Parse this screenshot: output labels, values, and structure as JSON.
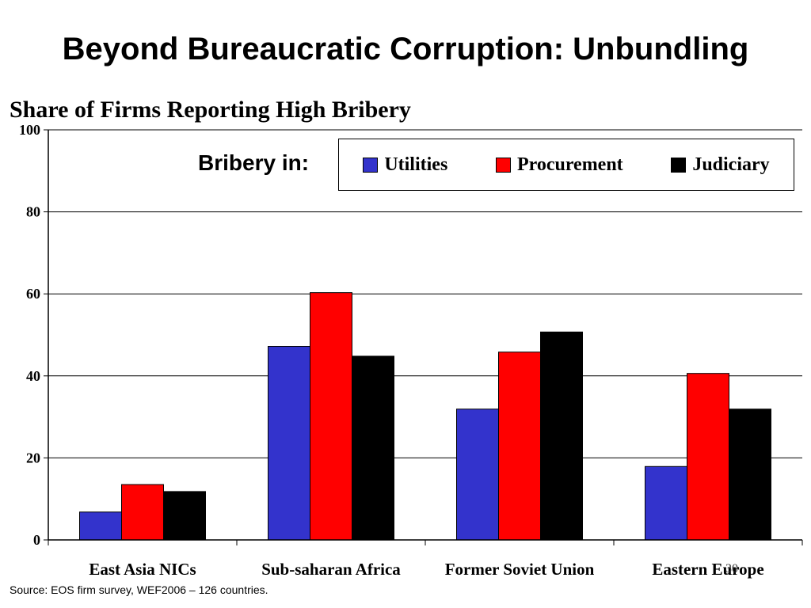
{
  "slide": {
    "title": "Beyond Bureaucratic Corruption: Unbundling",
    "source": "Source:  EOS firm survey, WEF2006 – 126 countries.",
    "page_number": "30"
  },
  "legend": {
    "lead": "Bribery in:"
  },
  "colors": {
    "utilities": "#3333CC",
    "procurement": "#FF0000",
    "judiciary": "#000000"
  },
  "chart_data": {
    "type": "bar",
    "title": "Share of Firms Reporting High Bribery",
    "categories": [
      "East Asia NICs",
      "Sub-saharan Africa",
      "Former Soviet Union",
      "Eastern Europe"
    ],
    "series": [
      {
        "name": "Utilities",
        "color": "#3333CC",
        "values": [
          6.8,
          47.2,
          31.9,
          17.9
        ]
      },
      {
        "name": "Procurement",
        "color": "#FF0000",
        "values": [
          13.5,
          60.3,
          45.8,
          40.6
        ]
      },
      {
        "name": "Judiciary",
        "color": "#000000",
        "values": [
          11.8,
          44.8,
          50.7,
          31.9
        ]
      }
    ],
    "ylim": [
      0,
      100
    ],
    "yticks": [
      0,
      20,
      40,
      60,
      80,
      100
    ],
    "grid": true,
    "legend_position": "top-right"
  }
}
